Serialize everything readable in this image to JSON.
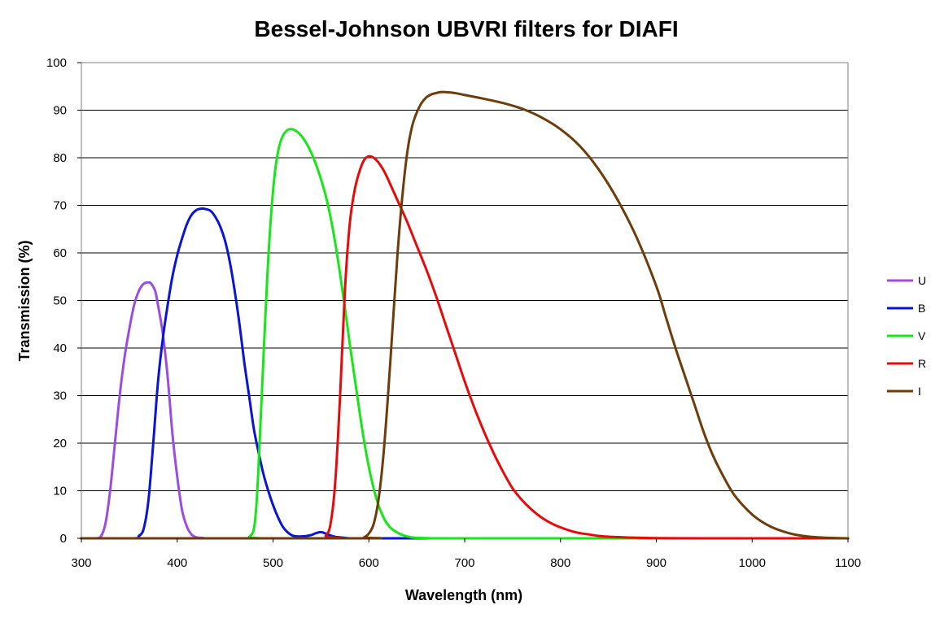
{
  "chart_data": {
    "type": "line",
    "title": "Bessel-Johnson UBVRI filters for DIAFI",
    "xlabel": "Wavelength (nm)",
    "ylabel": "Transmission (%)",
    "xlim": [
      300,
      1100
    ],
    "ylim": [
      0,
      100
    ],
    "xticks": [
      300,
      400,
      500,
      600,
      700,
      800,
      900,
      1000,
      1100
    ],
    "yticks": [
      0,
      10,
      20,
      30,
      40,
      50,
      60,
      70,
      80,
      90,
      100
    ],
    "grid": "horizontal",
    "legend_position": "right",
    "series": [
      {
        "name": "U",
        "color": "#9B4DE0",
        "x": [
          300,
          315,
          320,
          325,
          330,
          335,
          340,
          345,
          350,
          355,
          360,
          365,
          370,
          373,
          377,
          380,
          385,
          390,
          395,
          400,
          405,
          410,
          415,
          420,
          425,
          430,
          440,
          1100
        ],
        "y": [
          0,
          0,
          0.3,
          3,
          10,
          20,
          30,
          38,
          44,
          49,
          52,
          53.5,
          53.8,
          53.5,
          52,
          49,
          43,
          34,
          22,
          13,
          6,
          2.5,
          0.8,
          0.2,
          0.1,
          0,
          0,
          0
        ]
      },
      {
        "name": "B",
        "color": "#0A14D2",
        "x": [
          300,
          355,
          360,
          365,
          370,
          375,
          380,
          385,
          390,
          395,
          400,
          405,
          410,
          415,
          420,
          425,
          430,
          435,
          440,
          445,
          450,
          455,
          460,
          465,
          470,
          475,
          480,
          485,
          490,
          495,
          500,
          505,
          510,
          515,
          520,
          525,
          530,
          535,
          540,
          545,
          550,
          555,
          560,
          565,
          570,
          575,
          580,
          590,
          600,
          620,
          650,
          1100
        ],
        "y": [
          0,
          0,
          0.5,
          2,
          8,
          20,
          33,
          42,
          49,
          55,
          59.5,
          63,
          66,
          68,
          69,
          69.3,
          69.2,
          68.8,
          67.5,
          65.5,
          62.5,
          58,
          52,
          45,
          37,
          30,
          23,
          18,
          13.5,
          10,
          7,
          4.5,
          2.5,
          1.3,
          0.6,
          0.4,
          0.4,
          0.5,
          0.7,
          1.1,
          1.3,
          1,
          0.6,
          0.3,
          0.2,
          0.1,
          0,
          0,
          0,
          0,
          0,
          0
        ]
      },
      {
        "name": "V",
        "color": "#19E619",
        "x": [
          300,
          470,
          475,
          480,
          483,
          486,
          490,
          494,
          498,
          502,
          506,
          510,
          515,
          520,
          525,
          530,
          535,
          540,
          545,
          550,
          555,
          560,
          565,
          570,
          575,
          580,
          585,
          590,
          595,
          600,
          605,
          610,
          615,
          620,
          625,
          630,
          635,
          640,
          645,
          650,
          660,
          670,
          680,
          700,
          1100
        ],
        "y": [
          0,
          0,
          0.3,
          2,
          8,
          20,
          38,
          55,
          68,
          77,
          82,
          84.5,
          85.8,
          86,
          85.5,
          84.5,
          83,
          81,
          78.5,
          75.5,
          72,
          67.5,
          62,
          55.5,
          48.5,
          41,
          34,
          27,
          20.5,
          15,
          10.5,
          7,
          4.5,
          2.8,
          1.8,
          1.2,
          0.7,
          0.4,
          0.2,
          0.1,
          0.05,
          0,
          0,
          0,
          0
        ]
      },
      {
        "name": "R",
        "color": "#E60A0A",
        "x": [
          300,
          550,
          555,
          560,
          565,
          570,
          575,
          580,
          585,
          590,
          595,
          600,
          605,
          610,
          615,
          620,
          630,
          640,
          650,
          660,
          670,
          680,
          690,
          700,
          710,
          720,
          730,
          740,
          750,
          760,
          770,
          780,
          790,
          800,
          810,
          820,
          830,
          840,
          850,
          860,
          870,
          880,
          890,
          900,
          920,
          950,
          1000,
          1100
        ],
        "y": [
          0,
          0,
          0.5,
          3,
          12,
          30,
          52,
          66,
          73,
          77,
          79.5,
          80.3,
          80,
          79,
          77.5,
          75.5,
          71,
          66.5,
          61.5,
          56.5,
          51,
          45,
          39,
          33,
          27.5,
          22.5,
          18,
          14,
          10.5,
          8,
          6,
          4.4,
          3.2,
          2.3,
          1.6,
          1.1,
          0.8,
          0.5,
          0.35,
          0.25,
          0.18,
          0.12,
          0.08,
          0.05,
          0.02,
          0,
          0,
          0
        ]
      },
      {
        "name": "I",
        "color": "#6E3C0A",
        "x": [
          300,
          590,
          595,
          600,
          605,
          610,
          615,
          620,
          625,
          630,
          635,
          640,
          645,
          650,
          655,
          660,
          665,
          670,
          675,
          680,
          690,
          700,
          720,
          740,
          760,
          780,
          800,
          820,
          840,
          860,
          880,
          900,
          910,
          920,
          930,
          940,
          950,
          960,
          970,
          980,
          990,
          1000,
          1010,
          1020,
          1030,
          1040,
          1050,
          1060,
          1070,
          1080,
          1090,
          1100
        ],
        "y": [
          0,
          0,
          0.2,
          1,
          3,
          8,
          17,
          30,
          45,
          60,
          72,
          81,
          86.5,
          89.5,
          91.5,
          92.7,
          93.3,
          93.6,
          93.8,
          93.8,
          93.6,
          93.2,
          92.4,
          91.5,
          90.3,
          88.5,
          86,
          82.5,
          77.5,
          71,
          63,
          53,
          46.5,
          40,
          34,
          28,
          22,
          17,
          13,
          9.5,
          7,
          5,
          3.5,
          2.4,
          1.6,
          1,
          0.6,
          0.35,
          0.2,
          0.1,
          0.05,
          0
        ]
      }
    ]
  }
}
